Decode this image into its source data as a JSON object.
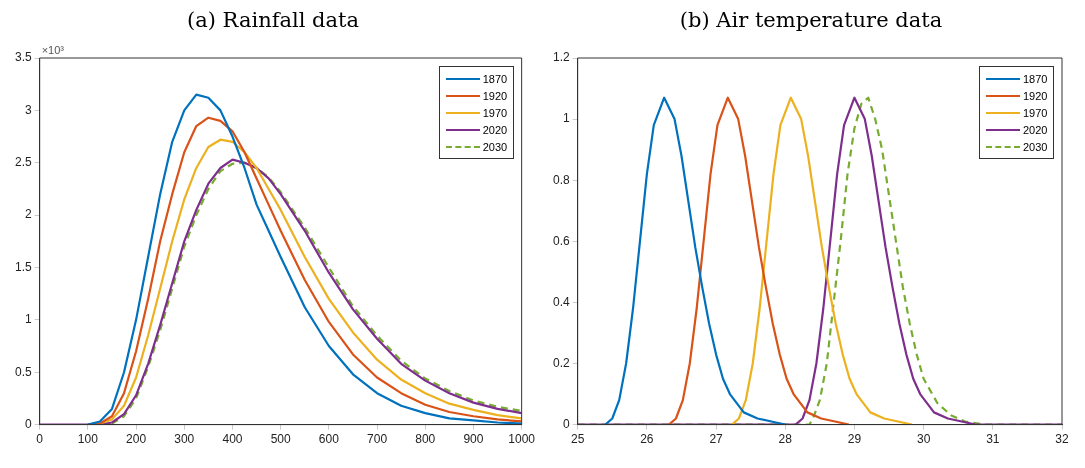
{
  "chart_data": [
    {
      "type": "line",
      "title": "(a) Rainfall data",
      "annotations": [
        "×10³"
      ],
      "legend": "top right",
      "grid": false,
      "marker": "none",
      "x": [
        0,
        50,
        100,
        125,
        150,
        175,
        200,
        225,
        250,
        275,
        300,
        325,
        350,
        375,
        400,
        425,
        450,
        475,
        500,
        550,
        600,
        650,
        700,
        750,
        800,
        850,
        900,
        950,
        1000
      ],
      "xlim": [
        0,
        1000
      ],
      "xticks": [
        0,
        100,
        200,
        300,
        400,
        500,
        600,
        700,
        800,
        900,
        1000
      ],
      "ylim": [
        0,
        3.5
      ],
      "yticks": [
        0,
        0.5,
        1,
        1.5,
        2,
        2.5,
        3,
        3.5
      ],
      "series": [
        {
          "name": "1870",
          "color": "#0072bd",
          "line_style": "solid",
          "values": [
            null,
            null,
            0,
            0.03,
            0.15,
            0.5,
            1.0,
            1.6,
            2.2,
            2.7,
            3.0,
            3.15,
            3.12,
            3.0,
            2.75,
            2.45,
            2.1,
            1.85,
            1.6,
            1.12,
            0.75,
            0.48,
            0.3,
            0.18,
            0.11,
            0.06,
            0.04,
            0.02,
            0.01
          ]
        },
        {
          "name": "1920",
          "color": "#d95319",
          "line_style": "solid",
          "values": [
            null,
            null,
            0,
            0.01,
            0.08,
            0.3,
            0.7,
            1.2,
            1.75,
            2.2,
            2.6,
            2.85,
            2.93,
            2.9,
            2.8,
            2.6,
            2.35,
            2.1,
            1.85,
            1.38,
            0.98,
            0.67,
            0.45,
            0.3,
            0.19,
            0.12,
            0.08,
            0.05,
            0.03
          ]
        },
        {
          "name": "1970",
          "color": "#edb120",
          "line_style": "solid",
          "values": [
            null,
            null,
            0,
            0.01,
            0.05,
            0.18,
            0.45,
            0.85,
            1.3,
            1.75,
            2.15,
            2.45,
            2.65,
            2.72,
            2.7,
            2.6,
            2.45,
            2.25,
            2.05,
            1.6,
            1.2,
            0.88,
            0.62,
            0.43,
            0.3,
            0.2,
            0.14,
            0.09,
            0.06
          ]
        },
        {
          "name": "2020",
          "color": "#7e2f8e",
          "line_style": "solid",
          "values": [
            0,
            0,
            0,
            0,
            0.02,
            0.1,
            0.28,
            0.58,
            0.95,
            1.35,
            1.75,
            2.05,
            2.3,
            2.45,
            2.53,
            2.5,
            2.45,
            2.35,
            2.2,
            1.85,
            1.45,
            1.1,
            0.82,
            0.58,
            0.42,
            0.3,
            0.21,
            0.15,
            0.11
          ]
        },
        {
          "name": "2030",
          "color": "#77ac30",
          "line_style": "dashed",
          "values": [
            null,
            null,
            null,
            0,
            0.01,
            0.08,
            0.25,
            0.55,
            0.9,
            1.3,
            1.7,
            2.0,
            2.25,
            2.42,
            2.49,
            2.5,
            2.45,
            2.36,
            2.22,
            1.88,
            1.5,
            1.13,
            0.85,
            0.61,
            0.44,
            0.32,
            0.23,
            0.17,
            0.13
          ]
        }
      ]
    },
    {
      "type": "line",
      "title": "(b) Air temperature data",
      "legend": "top right",
      "grid": false,
      "marker": "none",
      "xlim": [
        25,
        32
      ],
      "xticks": [
        25,
        26,
        27,
        28,
        29,
        30,
        31,
        32
      ],
      "ylim": [
        0,
        1.2
      ],
      "yticks": [
        0,
        0.2,
        0.4,
        0.6,
        0.8,
        1,
        1.2
      ],
      "series": [
        {
          "name": "1870",
          "color": "#0072bd",
          "line_style": "solid",
          "x": [
            25.4,
            25.5,
            25.6,
            25.7,
            25.8,
            25.9,
            26.0,
            26.1,
            26.25,
            26.4,
            26.5,
            26.6,
            26.7,
            26.8,
            26.9,
            27.0,
            27.1,
            27.2,
            27.4,
            27.6,
            27.8,
            28.0
          ],
          "values": [
            0,
            0.02,
            0.08,
            0.2,
            0.38,
            0.6,
            0.82,
            0.98,
            1.07,
            1.0,
            0.88,
            0.73,
            0.58,
            0.45,
            0.33,
            0.23,
            0.15,
            0.1,
            0.04,
            0.02,
            0.01,
            0
          ]
        },
        {
          "name": "1920",
          "color": "#d95319",
          "line_style": "solid",
          "x": [
            26.32,
            26.42,
            26.52,
            26.62,
            26.72,
            26.82,
            26.92,
            27.02,
            27.17,
            27.32,
            27.42,
            27.52,
            27.62,
            27.72,
            27.82,
            27.92,
            28.02,
            28.12,
            28.32,
            28.52,
            28.72,
            28.92
          ],
          "values": [
            0,
            0.02,
            0.08,
            0.2,
            0.38,
            0.6,
            0.82,
            0.98,
            1.07,
            1.0,
            0.88,
            0.73,
            0.58,
            0.45,
            0.33,
            0.23,
            0.15,
            0.1,
            0.04,
            0.02,
            0.01,
            0
          ]
        },
        {
          "name": "1970",
          "color": "#edb120",
          "line_style": "solid",
          "x": [
            27.23,
            27.33,
            27.43,
            27.53,
            27.63,
            27.73,
            27.83,
            27.93,
            28.08,
            28.23,
            28.33,
            28.43,
            28.53,
            28.63,
            28.73,
            28.83,
            28.93,
            29.03,
            29.23,
            29.43,
            29.63,
            29.83
          ],
          "values": [
            0,
            0.02,
            0.08,
            0.2,
            0.38,
            0.6,
            0.82,
            0.98,
            1.07,
            1.0,
            0.88,
            0.73,
            0.58,
            0.45,
            0.33,
            0.23,
            0.15,
            0.1,
            0.04,
            0.02,
            0.01,
            0
          ]
        },
        {
          "name": "2020",
          "color": "#7e2f8e",
          "line_style": "solid",
          "x": [
            25,
            28.15,
            28.25,
            28.35,
            28.45,
            28.55,
            28.65,
            28.75,
            28.85,
            29.0,
            29.15,
            29.25,
            29.35,
            29.45,
            29.55,
            29.65,
            29.75,
            29.85,
            29.95,
            30.15,
            30.35,
            30.55,
            30.75,
            32
          ],
          "values": [
            0,
            0,
            0.02,
            0.08,
            0.2,
            0.38,
            0.6,
            0.82,
            0.98,
            1.07,
            1.0,
            0.88,
            0.73,
            0.58,
            0.45,
            0.33,
            0.23,
            0.15,
            0.1,
            0.04,
            0.02,
            0.01,
            0,
            0
          ]
        },
        {
          "name": "2030",
          "color": "#77ac30",
          "line_style": "dashed",
          "x": [
            25,
            28.35,
            28.4,
            28.5,
            28.6,
            28.7,
            28.8,
            28.9,
            29.0,
            29.1,
            29.2,
            29.3,
            29.4,
            29.5,
            29.6,
            29.7,
            29.8,
            29.9,
            30.0,
            30.2,
            30.4,
            30.6,
            30.9,
            32
          ],
          "values": [
            0,
            0,
            0.02,
            0.08,
            0.2,
            0.4,
            0.6,
            0.82,
            0.97,
            1.05,
            1.07,
            1.0,
            0.9,
            0.75,
            0.6,
            0.45,
            0.33,
            0.23,
            0.15,
            0.07,
            0.03,
            0.01,
            0,
            0
          ]
        }
      ]
    }
  ]
}
